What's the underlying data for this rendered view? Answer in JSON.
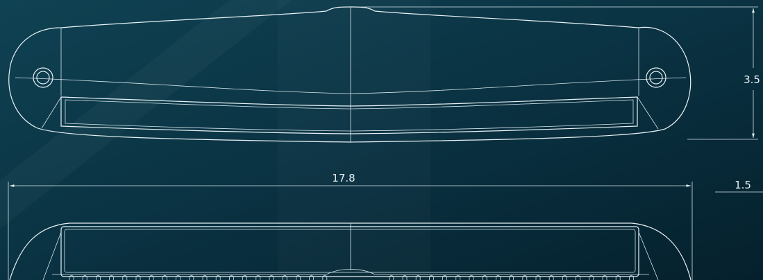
{
  "dimensions": {
    "height": "3.5",
    "width": "17.8",
    "depth": "1.5"
  }
}
